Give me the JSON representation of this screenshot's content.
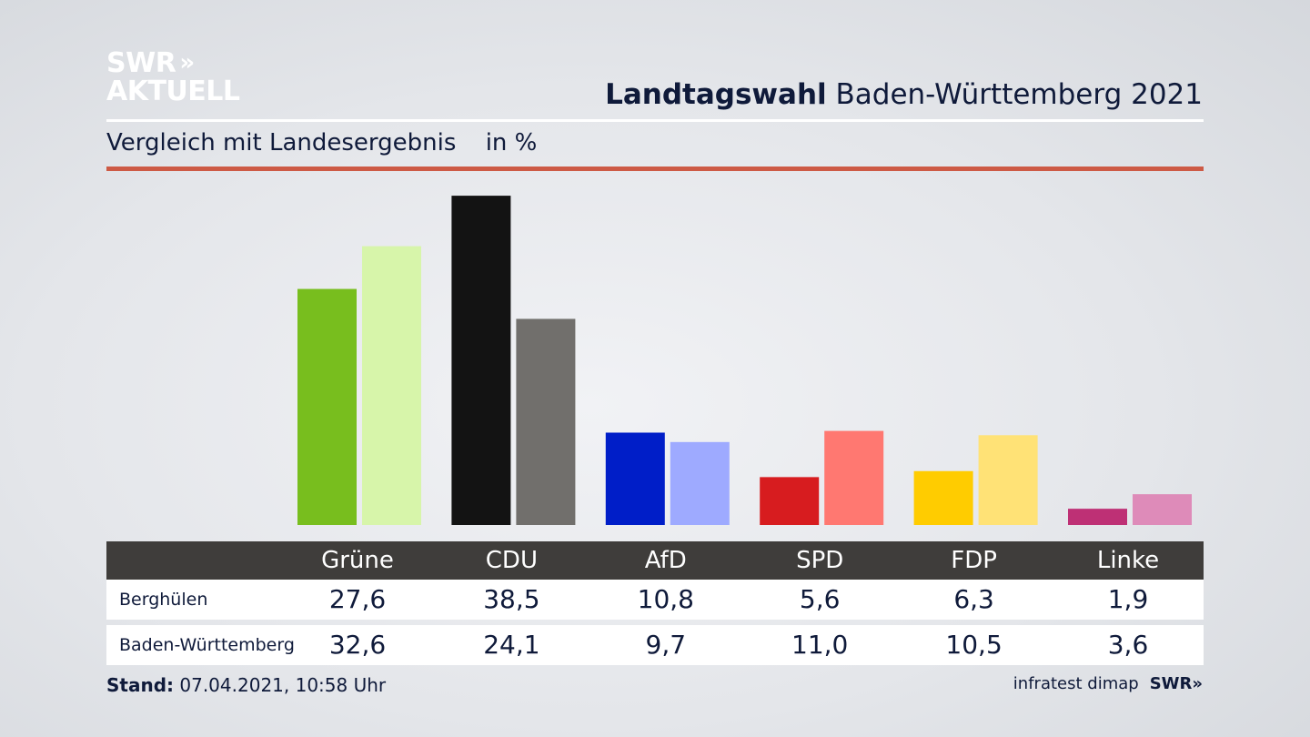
{
  "logo": {
    "line1": "SWR",
    "chevrons": "»",
    "line2": "AKTUELL"
  },
  "header": {
    "title_bold": "Landtagswahl",
    "title_rest": "Baden-Württemberg 2021",
    "subtitle": "Vergleich mit Landesergebnis",
    "unit": "in %"
  },
  "footer": {
    "stand_label": "Stand:",
    "stand_value": "07.04.2021, 10:58 Uhr",
    "source": "infratest dimap",
    "brand": "SWR»"
  },
  "colors": {
    "accent_rule": "#cd5a45",
    "table_header": "#3f3d3b"
  },
  "chart_data": {
    "type": "bar",
    "categories": [
      "Grüne",
      "CDU",
      "AfD",
      "SPD",
      "FDP",
      "Linke"
    ],
    "series": [
      {
        "name": "Berghülen",
        "values": [
          27.6,
          38.5,
          10.8,
          5.6,
          6.3,
          1.9
        ],
        "labels": [
          "27,6",
          "38,5",
          "10,8",
          "5,6",
          "6,3",
          "1,9"
        ],
        "colors": [
          "#78be1e",
          "#131313",
          "#001ec8",
          "#d71c1f",
          "#ffcc00",
          "#be3075"
        ]
      },
      {
        "name": "Baden-Württemberg",
        "values": [
          32.6,
          24.1,
          9.7,
          11.0,
          10.5,
          3.6
        ],
        "labels": [
          "32,6",
          "24,1",
          "9,7",
          "11,0",
          "10,5",
          "3,6"
        ],
        "colors": [
          "#d7f5aa",
          "#716f6c",
          "#9eaaff",
          "#ff7871",
          "#ffe276",
          "#de8bb9"
        ]
      }
    ],
    "ylim": [
      0,
      40
    ],
    "grid": false,
    "legend": "table-below"
  }
}
